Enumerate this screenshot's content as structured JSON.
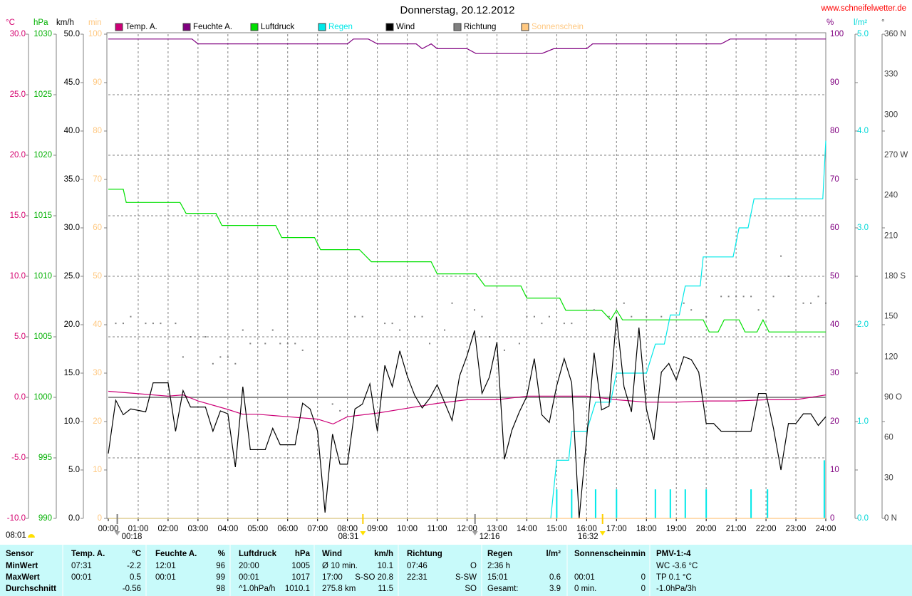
{
  "chart_data": {
    "type": "line",
    "title": "Donnerstag, 20.12.2012",
    "source": "www.schneifelwetter.de",
    "corner_note": "08:01",
    "xlim": [
      0,
      24
    ],
    "xticks": [
      {
        "value": 0,
        "label": "00:00"
      },
      {
        "value": 1,
        "label": "01:00"
      },
      {
        "value": 2,
        "label": "02:00"
      },
      {
        "value": 3,
        "label": "03:00"
      },
      {
        "value": 4,
        "label": "04:00"
      },
      {
        "value": 5,
        "label": "05:00"
      },
      {
        "value": 6,
        "label": "06:00"
      },
      {
        "value": 7,
        "label": "07:00"
      },
      {
        "value": 8,
        "label": "08:00"
      },
      {
        "value": 9,
        "label": "09:00"
      },
      {
        "value": 10,
        "label": "10:00"
      },
      {
        "value": 11,
        "label": "11:00"
      },
      {
        "value": 12,
        "label": "12:00"
      },
      {
        "value": 13,
        "label": "13:00"
      },
      {
        "value": 14,
        "label": "14:00"
      },
      {
        "value": 15,
        "label": "15:00"
      },
      {
        "value": 16,
        "label": "16:00"
      },
      {
        "value": 17,
        "label": "17:00"
      },
      {
        "value": 18,
        "label": "18:00"
      },
      {
        "value": 19,
        "label": "19:00"
      },
      {
        "value": 20,
        "label": "20:00"
      },
      {
        "value": 21,
        "label": "21:00"
      },
      {
        "value": 22,
        "label": "22:00"
      },
      {
        "value": 23,
        "label": "23:00"
      },
      {
        "value": 24,
        "label": "24:00"
      }
    ],
    "grid": true,
    "grid_axis": 0,
    "zero_line": true,
    "axes": [
      {
        "label": "°C",
        "color": "#d4006e",
        "side": "left",
        "lim": [
          -10,
          30
        ],
        "ticks": [
          {
            "value": -10,
            "label": "-10.0"
          },
          {
            "value": -5,
            "label": "-5.0"
          },
          {
            "value": 0,
            "label": "0.0"
          },
          {
            "value": 5,
            "label": "5.0"
          },
          {
            "value": 10,
            "label": "10.0"
          },
          {
            "value": 15,
            "label": "15.0"
          },
          {
            "value": 20,
            "label": "20.0"
          },
          {
            "value": 25,
            "label": "25.0"
          },
          {
            "value": 30,
            "label": "30.0"
          }
        ]
      },
      {
        "label": "hPa",
        "color": "#00b000",
        "side": "left",
        "lim": [
          990,
          1030
        ],
        "ticks": [
          990,
          995,
          1000,
          1005,
          1010,
          1015,
          1020,
          1025,
          1030
        ]
      },
      {
        "label": "km/h",
        "color": "#000000",
        "side": "left",
        "lim": [
          0,
          50
        ],
        "ticks": [
          {
            "value": 0,
            "label": "0.0"
          },
          {
            "value": 5,
            "label": "5.0"
          },
          {
            "value": 10,
            "label": "10.0"
          },
          {
            "value": 15,
            "label": "15.0"
          },
          {
            "value": 20,
            "label": "20.0"
          },
          {
            "value": 25,
            "label": "25.0"
          },
          {
            "value": 30,
            "label": "30.0"
          },
          {
            "value": 35,
            "label": "35.0"
          },
          {
            "value": 40,
            "label": "40.0"
          },
          {
            "value": 45,
            "label": "45.0"
          },
          {
            "value": 50,
            "label": "50.0"
          }
        ]
      },
      {
        "label": "min",
        "color": "#ffc880",
        "side": "left",
        "lim": [
          0,
          100
        ],
        "ticks": [
          0,
          10,
          20,
          30,
          40,
          50,
          60,
          70,
          80,
          90,
          100
        ]
      },
      {
        "label": "%",
        "color": "#800080",
        "side": "right",
        "lim": [
          0,
          100
        ],
        "ticks": [
          0,
          10,
          20,
          30,
          40,
          50,
          60,
          70,
          80,
          90,
          100
        ]
      },
      {
        "label": "l/m²",
        "color": "#00d8d8",
        "side": "right",
        "lim": [
          0,
          5
        ],
        "ticks": [
          {
            "value": 0,
            "label": "0.0"
          },
          {
            "value": 1,
            "label": "1.0"
          },
          {
            "value": 2,
            "label": "2.0"
          },
          {
            "value": 3,
            "label": "3.0"
          },
          {
            "value": 4,
            "label": "4.0"
          },
          {
            "value": 5,
            "label": "5.0"
          }
        ]
      },
      {
        "label": "°",
        "color": "#404040",
        "side": "right",
        "lim": [
          0,
          360
        ],
        "ticks": [
          {
            "value": 0,
            "label": "0 N"
          },
          30,
          60,
          {
            "value": 90,
            "label": "90 O"
          },
          120,
          150,
          {
            "value": 180,
            "label": "180 S"
          },
          210,
          240,
          {
            "value": 270,
            "label": "270 W"
          },
          300,
          330,
          {
            "value": 360,
            "label": "360 N"
          }
        ]
      }
    ],
    "series": [
      {
        "name": "Temp. A.",
        "color": "#cc0077",
        "axis": 0,
        "x": [
          0,
          1,
          2,
          2.5,
          3,
          4,
          4.5,
          5,
          6,
          7,
          7.52,
          8,
          9,
          10,
          11,
          12,
          13,
          14,
          15,
          16,
          17,
          18,
          19,
          20,
          21,
          22,
          23,
          24
        ],
        "values": [
          0.5,
          0.3,
          0.1,
          0.2,
          -0.3,
          -1.0,
          -1.4,
          -1.4,
          -1.6,
          -1.8,
          -2.2,
          -1.6,
          -1.3,
          -0.9,
          -0.5,
          -0.2,
          -0.2,
          0.1,
          0.1,
          0.1,
          -0.2,
          -0.4,
          -0.4,
          -0.3,
          -0.3,
          -0.2,
          -0.2,
          0.2
        ]
      },
      {
        "name": "Feuchte A.",
        "color": "#800080",
        "axis": 4,
        "x": [
          0,
          2.8,
          3,
          8,
          8.2,
          8.7,
          9,
          10.3,
          10.5,
          10.8,
          11,
          12,
          12.3,
          14.5,
          14.9,
          16,
          16.2,
          20.5,
          20.8,
          24
        ],
        "values": [
          99,
          99,
          98,
          98,
          99,
          99,
          98,
          98,
          97,
          98,
          97,
          97,
          96,
          96,
          97,
          97,
          98,
          98,
          99,
          99
        ]
      },
      {
        "name": "Luftdruck",
        "color": "#00e000",
        "axis": 1,
        "x": [
          0,
          0.5,
          0.6,
          2.4,
          2.6,
          3.6,
          3.8,
          5.6,
          5.8,
          6.9,
          7.1,
          8.4,
          8.8,
          10.8,
          11,
          12.3,
          12.6,
          13.8,
          14,
          15.1,
          15.3,
          16.5,
          16.8,
          17,
          17.2,
          19.9,
          20.1,
          20.4,
          20.6,
          21.1,
          21.3,
          21.7,
          21.9,
          22.1,
          24
        ],
        "values": [
          1017.2,
          1017.2,
          1016.1,
          1016.1,
          1015.2,
          1015.2,
          1014.2,
          1014.2,
          1013.2,
          1013.2,
          1012.2,
          1012.2,
          1011.2,
          1011.2,
          1010.2,
          1010.2,
          1009.2,
          1009.2,
          1008.2,
          1008.2,
          1007.2,
          1007.2,
          1006.4,
          1007.2,
          1006.4,
          1006.4,
          1005.4,
          1005.4,
          1006.4,
          1006.4,
          1005.4,
          1005.4,
          1006.4,
          1005.4,
          1005.4
        ]
      },
      {
        "name": "Regen",
        "color": "#00e8e8",
        "axis": 5,
        "x": [
          0,
          14.8,
          15,
          15.4,
          15.5,
          16,
          16.3,
          16.8,
          17,
          18,
          18.3,
          18.6,
          18.8,
          19.1,
          19.3,
          19.8,
          19.9,
          20.9,
          21.1,
          21.4,
          21.6,
          23.9,
          24
        ],
        "values": [
          0,
          0,
          0.6,
          0.6,
          0.9,
          0.9,
          1.2,
          1.2,
          1.5,
          1.5,
          1.8,
          1.8,
          2.1,
          2.1,
          2.4,
          2.4,
          2.7,
          2.7,
          3.0,
          3.0,
          3.3,
          3.3,
          3.9
        ],
        "interval_x": [
          15,
          15.5,
          16.3,
          17,
          18.3,
          18.8,
          19.3,
          20,
          21.5,
          22.05,
          23.95
        ],
        "interval_values": [
          0.3,
          0.3,
          0.3,
          0.3,
          0.3,
          0.3,
          0.3,
          0.3,
          0.3,
          0.3,
          0.6
        ]
      },
      {
        "name": "Wind",
        "color": "#000000",
        "axis": 2,
        "x": [
          0,
          0.25,
          0.5,
          0.75,
          1.25,
          1.5,
          2,
          2.25,
          2.5,
          2.75,
          3.25,
          3.5,
          3.75,
          4,
          4.25,
          4.5,
          4.75,
          5.25,
          5.5,
          5.75,
          6.25,
          6.5,
          6.75,
          7,
          7.25,
          7.5,
          7.75,
          8,
          8.25,
          8.5,
          8.75,
          9,
          9.25,
          9.5,
          9.75,
          10,
          10.25,
          10.5,
          10.75,
          11,
          11.5,
          11.75,
          12,
          12.25,
          12.5,
          12.75,
          13,
          13.25,
          13.5,
          13.75,
          14,
          14.25,
          14.5,
          14.75,
          15,
          15.25,
          15.5,
          15.75,
          16,
          16.25,
          16.5,
          16.75,
          17,
          17.25,
          17.5,
          17.75,
          18,
          18.25,
          18.5,
          18.75,
          19,
          19.25,
          19.5,
          19.75,
          20,
          20.25,
          20.5,
          21.5,
          21.75,
          22,
          22.25,
          22.5,
          22.75,
          23,
          23.25,
          23.5,
          23.75,
          24
        ],
        "values": [
          6.7,
          12.2,
          10.7,
          11.3,
          11.0,
          14.0,
          14.0,
          9.0,
          13.2,
          11.5,
          11.5,
          9.0,
          11.1,
          10.8,
          5.3,
          13.6,
          7.1,
          7.1,
          9.3,
          7.6,
          7.6,
          11.9,
          11.3,
          9.0,
          0.6,
          8.7,
          5.6,
          5.6,
          11.3,
          11.8,
          13.9,
          9.0,
          15.8,
          13.6,
          17.3,
          14.7,
          12.7,
          11.4,
          12.4,
          13.8,
          10.1,
          14.7,
          16.8,
          19.4,
          12.9,
          14.6,
          18.2,
          6.1,
          9.1,
          11.0,
          12.6,
          16.5,
          10.7,
          9.9,
          13.7,
          16.5,
          14.0,
          0.0,
          8.2,
          17.1,
          11.2,
          11.6,
          20.8,
          13.6,
          11.0,
          19.7,
          11.3,
          8.1,
          15.1,
          16.0,
          14.3,
          16.7,
          16.4,
          15.1,
          9.8,
          9.8,
          9.0,
          9.0,
          12.9,
          12.9,
          9.3,
          5.0,
          9.8,
          9.8,
          10.8,
          10.8,
          9.6,
          10.5
        ]
      },
      {
        "name": "Richtung",
        "color": "#808080",
        "axis": 6,
        "style": "dots",
        "x": [
          0.25,
          0.5,
          0.75,
          1.25,
          1.5,
          1.75,
          2.25,
          2.5,
          2.75,
          3.25,
          3.5,
          3.75,
          4,
          4.25,
          4.5,
          4.75,
          5.25,
          5.5,
          5.75,
          6,
          6.25,
          6.5,
          7.5,
          7.75,
          8.25,
          8.5,
          9.25,
          9.5,
          9.75,
          10.25,
          10.5,
          10.75,
          11.25,
          11.5,
          12.25,
          12.5,
          12.75,
          13.25,
          13.75,
          14,
          14.25,
          14.5,
          14.75,
          15.25,
          15.5,
          16.25,
          16.75,
          17.25,
          17.5,
          18,
          18.5,
          19.25,
          19.5,
          20,
          20.5,
          20.75,
          21,
          21.25,
          21.5,
          21.75,
          22.25,
          22.5,
          22.75,
          23.25,
          23.5,
          23.75,
          24
        ],
        "values": [
          145,
          145,
          150,
          145,
          145,
          145,
          145,
          120,
          135,
          135,
          115,
          120,
          120,
          115,
          140,
          130,
          130,
          140,
          130,
          130,
          130,
          125,
          85,
          80,
          150,
          150,
          145,
          145,
          140,
          150,
          150,
          130,
          140,
          160,
          155,
          150,
          135,
          125,
          130,
          150,
          150,
          145,
          150,
          145,
          145,
          155,
          150,
          160,
          150,
          150,
          150,
          160,
          155,
          150,
          165,
          165,
          165,
          165,
          165,
          155,
          165,
          195,
          180,
          160,
          160,
          165,
          160
        ]
      },
      {
        "name": "Sonnenschein",
        "color": "#ffc880",
        "axis": 3,
        "x": [
          0,
          24
        ],
        "values": [
          0,
          0
        ]
      }
    ],
    "events": [
      {
        "label": "00:18",
        "kind": "moon"
      },
      {
        "label": "08:31",
        "kind": "sun"
      },
      {
        "label": "12:16",
        "kind": "moon"
      },
      {
        "label": "16:32",
        "kind": "sun"
      }
    ]
  },
  "table": {
    "rows": [
      [
        "Sensor",
        "Temp. A.",
        "°C",
        "Feuchte A.",
        "%",
        "Luftdruck",
        "hPa",
        "Wind",
        "km/h",
        "Richtung",
        null,
        "Regen",
        "l/m²",
        "Sonnenschein",
        "min",
        "PMV-1:-4",
        null
      ],
      [
        "MinWert",
        "07:31",
        "-2.2",
        "12:01",
        "96",
        "20:00",
        "1005",
        "Ø 10 min.",
        "10.1",
        "07:46",
        "O",
        "2:36 h",
        null,
        null,
        null,
        "WC -3.6 °C",
        null
      ],
      [
        "MaxWert",
        "00:01",
        "0.5",
        "00:01",
        "99",
        "00:01",
        "1017",
        "17:00",
        "S-SO 20.8",
        "22:31",
        "S-SW",
        "15:01",
        "0.6",
        "00:01",
        "0",
        "TP 0.1 °C",
        null
      ],
      [
        "Durchschnitt",
        null,
        "-0.56",
        null,
        "98",
        "^1.0hPa/h",
        "1010.1",
        "275.8 km",
        "11.5",
        null,
        "SO",
        "Gesamt:",
        "3.9",
        "0 min.",
        "0",
        "-1.0hPa/3h",
        null
      ]
    ]
  }
}
